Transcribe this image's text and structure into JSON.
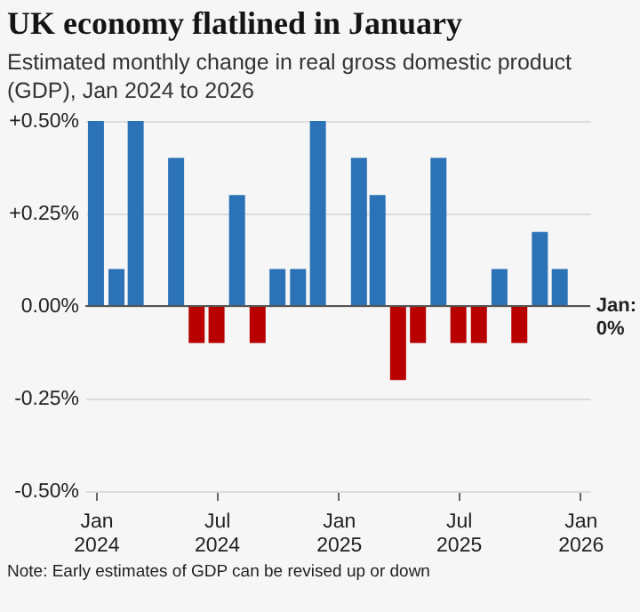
{
  "chart_data": {
    "type": "bar",
    "title": "UK economy flatlined in January",
    "subtitle": "Estimated monthly change in real gross domestic product (GDP), Jan 2024 to 2026",
    "x": [
      "2024-01",
      "2024-02",
      "2024-03",
      "2024-04",
      "2024-05",
      "2024-06",
      "2024-07",
      "2024-08",
      "2024-09",
      "2024-10",
      "2024-11",
      "2024-12",
      "2025-01",
      "2025-02",
      "2025-03",
      "2025-04",
      "2025-05",
      "2025-06",
      "2025-07",
      "2025-08",
      "2025-09",
      "2025-10",
      "2025-11",
      "2025-12",
      "2026-01"
    ],
    "values": [
      0.5,
      0.1,
      0.5,
      0,
      0.4,
      -0.1,
      -0.1,
      0.3,
      -0.1,
      0.1,
      0.1,
      0.5,
      0,
      0.4,
      0.3,
      -0.2,
      -0.1,
      0.4,
      -0.1,
      -0.1,
      0.1,
      -0.1,
      0.2,
      0.1,
      0
    ],
    "colors": [
      "#2b73b6",
      "#2b73b6",
      "#2b73b6",
      "#2b73b6",
      "#2b73b6",
      "#b80000",
      "#b80000",
      "#2b73b6",
      "#b80000",
      "#2b73b6",
      "#2b73b6",
      "#2b73b6",
      "#2b73b6",
      "#2b73b6",
      "#2b73b6",
      "#b80000",
      "#b80000",
      "#2b73b6",
      "#b80000",
      "#b80000",
      "#2b73b6",
      "#b80000",
      "#2b73b6",
      "#2b73b6",
      "#2b73b6"
    ],
    "xticks": [
      {
        "value": "2024-01",
        "label": "Jan\n2024"
      },
      {
        "value": "2024-07",
        "label": "Jul\n2024"
      },
      {
        "value": "2025-01",
        "label": "Jan\n2025"
      },
      {
        "value": "2025-07",
        "label": "Jul\n2025"
      },
      {
        "value": "2026-01",
        "label": "Jan\n2026"
      }
    ],
    "xlim": [
      "2023-12-16",
      "2026-01-16"
    ],
    "ylim": [
      -0.5,
      0.5
    ],
    "yticks": [
      {
        "value": 0.5,
        "label": "+0.50%"
      },
      {
        "value": 0.25,
        "label": "+0.25%"
      },
      {
        "value": 0,
        "label": "0.00%"
      },
      {
        "value": -0.25,
        "label": "-0.25%"
      },
      {
        "value": -0.5,
        "label": "-0.50%"
      }
    ],
    "grid": "y",
    "annotations": [
      {
        "text": "Jan: 0%",
        "x": "2026-01",
        "y": 0
      },
      "Note: Early estimates of GDP can be revised up or down"
    ]
  }
}
